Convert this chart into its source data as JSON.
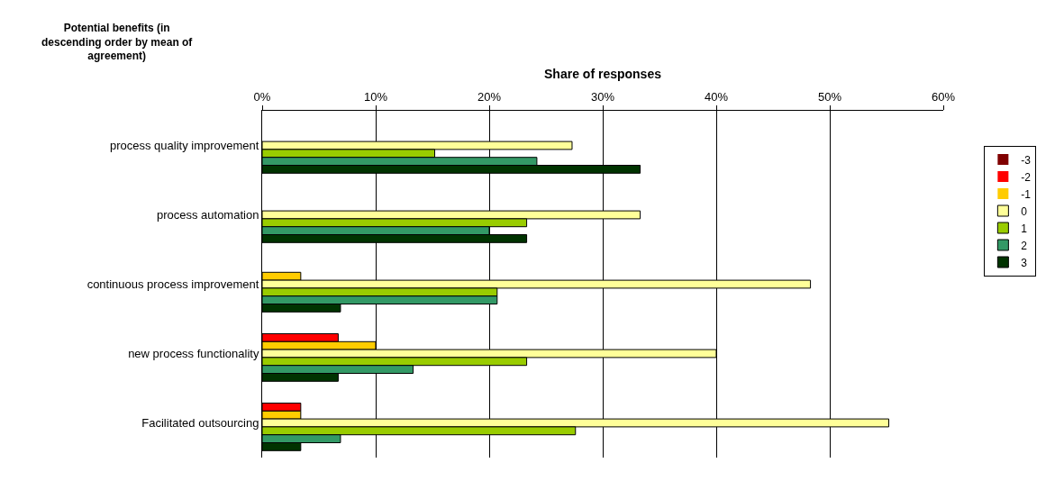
{
  "chart_data": {
    "type": "bar",
    "orientation": "horizontal",
    "xlabel": "Share of responses",
    "ylabel": "Potential benefits (in descending order by mean of agreement)",
    "categories": [
      "process quality improvement",
      "process automation",
      "continuous process improvement",
      "new process functionality",
      "Facilitated outsourcing"
    ],
    "series": [
      {
        "name": "-3",
        "color": "#800000",
        "values": [
          0,
          0,
          0,
          0,
          0
        ]
      },
      {
        "name": "-2",
        "color": "#ff0000",
        "values": [
          0,
          0,
          0,
          6.7,
          3.4
        ]
      },
      {
        "name": "-1",
        "color": "#ffcc00",
        "values": [
          0,
          0,
          3.4,
          10.0,
          3.4
        ]
      },
      {
        "name": "0",
        "color": "#ffff99",
        "values": [
          27.3,
          33.3,
          48.3,
          40.0,
          55.2
        ]
      },
      {
        "name": "1",
        "color": "#99cc00",
        "values": [
          15.2,
          23.3,
          20.7,
          23.3,
          27.6
        ]
      },
      {
        "name": "2",
        "color": "#339966",
        "values": [
          24.2,
          20.0,
          20.7,
          13.3,
          6.9
        ]
      },
      {
        "name": "3",
        "color": "#003300",
        "values": [
          33.3,
          23.3,
          6.9,
          6.7,
          3.4
        ]
      }
    ],
    "xlim": [
      0,
      60
    ],
    "xticks": [
      {
        "value": 0,
        "label": "0%"
      },
      {
        "value": 10,
        "label": "10%"
      },
      {
        "value": 20,
        "label": "20%"
      },
      {
        "value": 30,
        "label": "30%"
      },
      {
        "value": 40,
        "label": "40%"
      },
      {
        "value": 50,
        "label": "50%"
      },
      {
        "value": 60,
        "label": "60%"
      }
    ],
    "grid": "x",
    "legend": "right"
  }
}
